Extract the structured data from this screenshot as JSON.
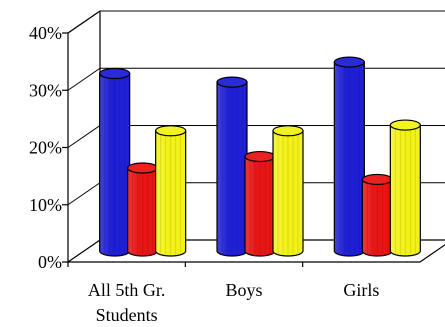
{
  "chart_data": {
    "type": "bar",
    "title": "",
    "xlabel": "",
    "ylabel": "",
    "categories": [
      [
        "All 5th Gr.",
        "Students"
      ],
      [
        "Boys"
      ],
      [
        "Girls"
      ]
    ],
    "series": [
      {
        "values": [
          31,
          29.5,
          33
        ],
        "color": "#1f1fd6"
      },
      {
        "values": [
          14.5,
          16.5,
          12.5
        ],
        "color": "#e81515"
      },
      {
        "values": [
          21,
          21,
          22
        ],
        "color": "#f2f218"
      }
    ],
    "y_ticks": [
      "0%",
      "10%",
      "20%",
      "30%",
      "40%"
    ],
    "ylim": [
      0,
      40
    ],
    "grid": true,
    "legend": "none",
    "style": "3d-cylinder"
  }
}
